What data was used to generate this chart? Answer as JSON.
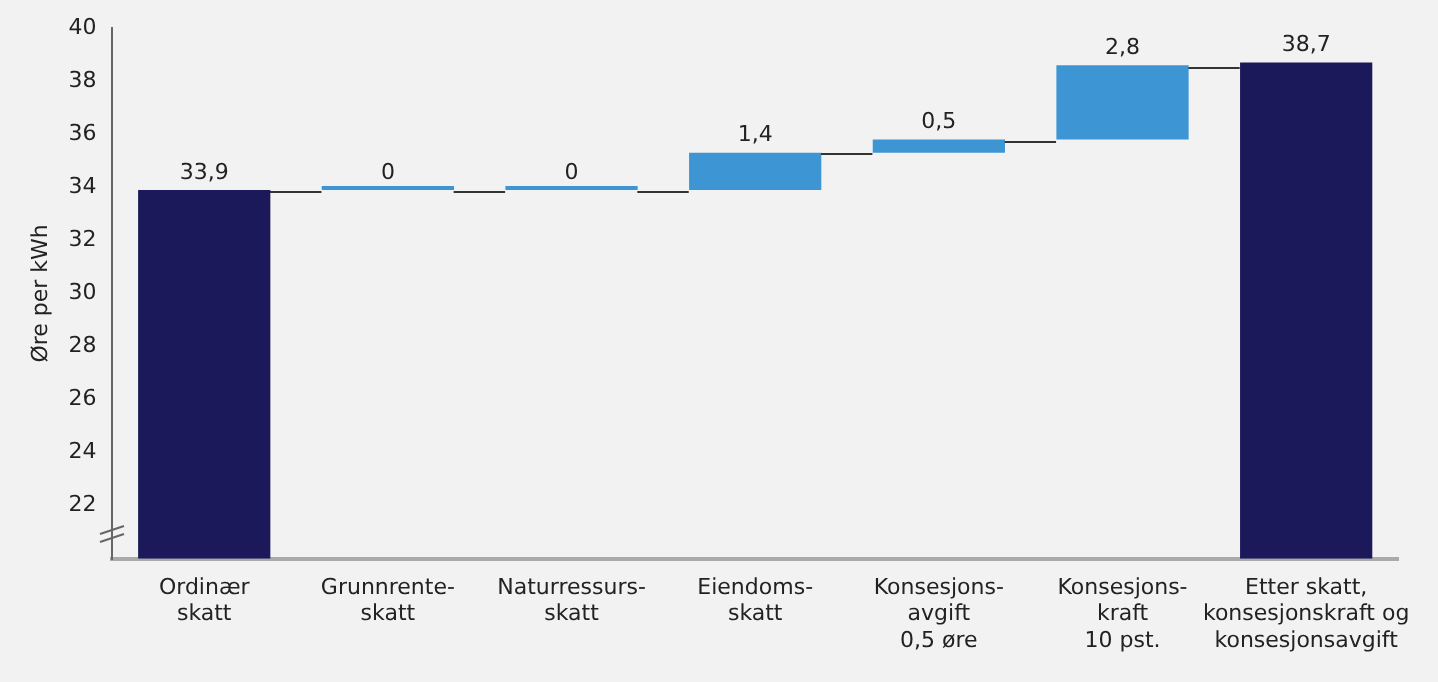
{
  "chart_data": {
    "type": "bar",
    "ylabel": "Øre per kWh",
    "categories": [
      "Ordinær\nskatt",
      "Grunnrente-\nskatt",
      "Naturressurs-\nskatt",
      "Eiendoms-\nskatt",
      "Konsesjons-\navgift\n0,5 øre",
      "Konsesjons-\nkraft\n10 pst.",
      "Etter skatt,\nkonsesjonskraft og\nkonsesjonsavgift"
    ],
    "values": [
      33.9,
      0,
      0,
      1.4,
      0.5,
      2.8,
      38.7
    ],
    "base": [
      null,
      33.9,
      33.9,
      33.9,
      35.3,
      35.8,
      null
    ],
    "colors": [
      "#1b1959",
      "#3d95d3",
      "#3d95d3",
      "#3d95d3",
      "#3d95d3",
      "#3d95d3",
      "#1b1959"
    ],
    "value_labels": [
      "33,9",
      "0",
      "0",
      "1,4",
      "0,5",
      "2,8",
      "38,7"
    ],
    "ylim": [
      20,
      40
    ],
    "yticks": [
      22,
      24,
      26,
      28,
      30,
      32,
      34,
      36,
      38,
      40
    ],
    "grid": false,
    "legend": false
  }
}
